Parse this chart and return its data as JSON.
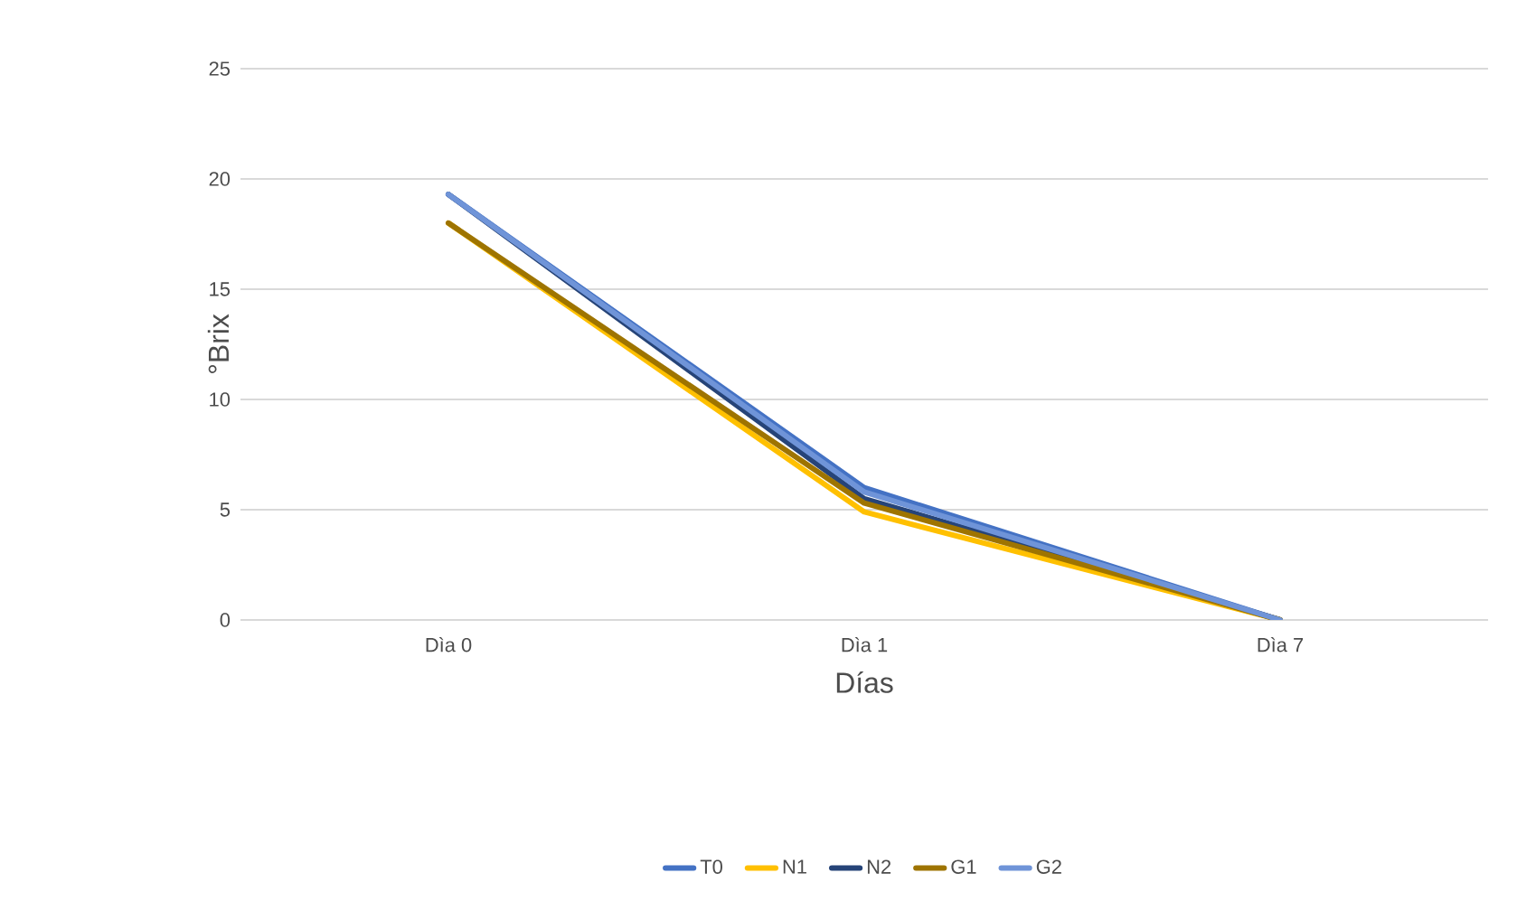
{
  "chart_data": {
    "type": "line",
    "xlabel": "Días",
    "ylabel": "°Brix",
    "categories": [
      "Dìa 0",
      "Dìa 1",
      "Dìa 7"
    ],
    "series": [
      {
        "name": "T0",
        "color": "#4472c4",
        "values": [
          19.3,
          6.0,
          0
        ]
      },
      {
        "name": "N1",
        "color": "#ffc000",
        "values": [
          18.0,
          4.9,
          0
        ]
      },
      {
        "name": "N2",
        "color": "#264478",
        "values": [
          19.3,
          5.5,
          0
        ]
      },
      {
        "name": "G1",
        "color": "#9e7400",
        "values": [
          18.0,
          5.3,
          0
        ]
      },
      {
        "name": "G2",
        "color": "#6f94d8",
        "values": [
          19.3,
          5.8,
          0
        ]
      }
    ],
    "ylim": [
      0,
      25
    ],
    "yticks": [
      0,
      5,
      10,
      15,
      20,
      25
    ],
    "grid": "y",
    "legend": "bottom",
    "marker": "none",
    "line_style": "solid"
  }
}
